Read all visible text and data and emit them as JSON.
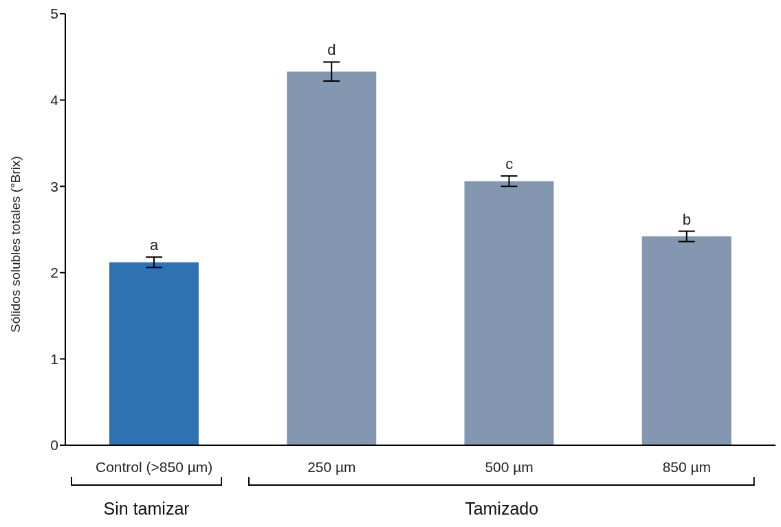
{
  "chart_data": {
    "type": "bar",
    "ylabel": "Sólidos solubles totales (°Brix)",
    "categories": [
      "Control (>850 µm)",
      "250 µm",
      "500 µm",
      "850 µm"
    ],
    "values": [
      2.12,
      4.33,
      3.06,
      2.42
    ],
    "colors": [
      "#2e72b4",
      "#8497b0",
      "#8497b0",
      "#8497b0"
    ],
    "errors": [
      0.06,
      0.11,
      0.06,
      0.06
    ],
    "ylim": [
      0,
      5
    ],
    "yticks": [
      0,
      1,
      2,
      3,
      4,
      5
    ],
    "grid": false,
    "legend": false,
    "annotations": [
      {
        "text": "a",
        "x": "Control (>850 µm)",
        "y": 2.18
      },
      {
        "text": "d",
        "x": "250 µm",
        "y": 4.44
      },
      {
        "text": "c",
        "x": "500 µm",
        "y": 3.12
      },
      {
        "text": "b",
        "x": "850 µm",
        "y": 2.48
      },
      "Sin tamizar",
      "Tamizado"
    ]
  }
}
